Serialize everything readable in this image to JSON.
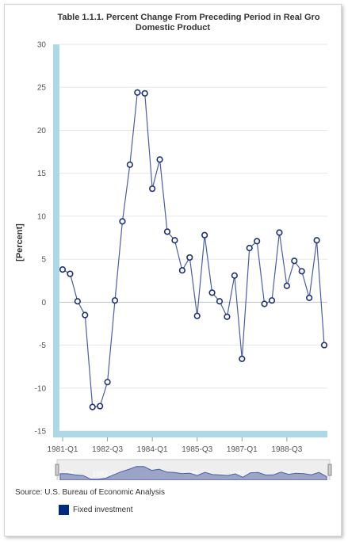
{
  "chart_data": {
    "type": "line",
    "title": "Table 1.1.1. Percent Change From Preceding Period in Real Gro",
    "subtitle": "Domestic Product",
    "ylabel": "[Percent]",
    "xlabel": "",
    "ylim": [
      -15,
      30
    ],
    "yticks": [
      -15,
      -10,
      -5,
      0,
      5,
      10,
      15,
      20,
      25,
      30
    ],
    "xticks": [
      {
        "label": "1981-Q1",
        "index": 0
      },
      {
        "label": "1982-Q3",
        "index": 6
      },
      {
        "label": "1984-Q1",
        "index": 12
      },
      {
        "label": "1985-Q3",
        "index": 18
      },
      {
        "label": "1987-Q1",
        "index": 24
      },
      {
        "label": "1988-Q3",
        "index": 30
      }
    ],
    "navigator_labels": [
      "1981-Q1",
      "1982-Q3",
      "1984-Q1",
      "1985-Q3",
      "1987-Q1",
      "1988-Q3"
    ],
    "grid": true,
    "legend_position": "bottom-left",
    "series": [
      {
        "name": "Fixed investment",
        "color": "#4a5ea8",
        "values": [
          3.8,
          3.3,
          0.1,
          -1.5,
          -12.2,
          -12.1,
          -9.3,
          0.2,
          9.4,
          16.0,
          24.4,
          24.3,
          13.2,
          16.6,
          8.2,
          7.2,
          3.7,
          5.2,
          -1.6,
          7.8,
          1.1,
          0.1,
          -1.7,
          3.1,
          -6.6,
          6.3,
          7.1,
          -0.2,
          0.2,
          8.1,
          1.9,
          4.8,
          3.6,
          0.5,
          7.2,
          -5.0
        ]
      }
    ]
  },
  "source_text": "Source: U.S. Bureau of Economic Analysis",
  "legend": {
    "label": "Fixed investment",
    "color": "#002a7f"
  },
  "colors": {
    "axis_band": "#add8e6",
    "grid": "#e6e6e6",
    "line": "#4a5ea8",
    "marker": "#1e2f7a"
  }
}
